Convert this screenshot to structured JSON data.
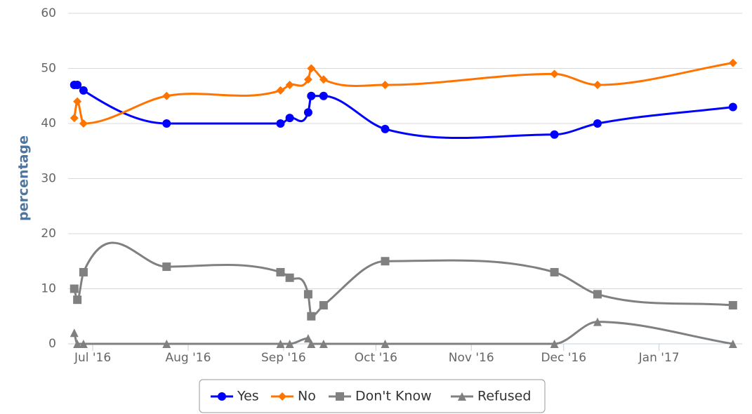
{
  "chart_data": {
    "type": "line",
    "y_label": "percentage",
    "x": [
      "2016-06-25",
      "2016-06-26",
      "2016-06-28",
      "2016-07-25",
      "2016-08-31",
      "2016-09-03",
      "2016-09-09",
      "2016-09-10",
      "2016-09-14",
      "2016-10-04",
      "2016-11-28",
      "2016-12-12",
      "2017-01-25"
    ],
    "series": [
      {
        "name": "Yes",
        "color": "#0000ff",
        "marker": "circle",
        "values": [
          47,
          47,
          46,
          40,
          40,
          41,
          42,
          45,
          45,
          39,
          38,
          40,
          43
        ]
      },
      {
        "name": "No",
        "color": "#ff7400",
        "marker": "diamond",
        "values": [
          41,
          44,
          40,
          45,
          46,
          47,
          48,
          50,
          48,
          47,
          49,
          47,
          51
        ]
      },
      {
        "name": "Don't Know",
        "color": "#808080",
        "marker": "square",
        "values": [
          10,
          8,
          13,
          14,
          13,
          12,
          9,
          5,
          7,
          15,
          13,
          9,
          7
        ]
      },
      {
        "name": "Refused",
        "color": "#808080",
        "marker": "triangle",
        "values": [
          2,
          0,
          0,
          0,
          0,
          0,
          1,
          0,
          0,
          0,
          0,
          4,
          0
        ]
      }
    ],
    "xlim": [
      "2016-06-23",
      "2017-01-28"
    ],
    "xticks": [
      {
        "value": "2016-07-01",
        "label": "Jul '16"
      },
      {
        "value": "2016-08-01",
        "label": "Aug '16"
      },
      {
        "value": "2016-09-01",
        "label": "Sep '16"
      },
      {
        "value": "2016-10-01",
        "label": "Oct '16"
      },
      {
        "value": "2016-11-01",
        "label": "Nov '16"
      },
      {
        "value": "2016-12-01",
        "label": "Dec '16"
      },
      {
        "value": "2017-01-01",
        "label": "Jan '17"
      }
    ],
    "ylim": [
      0,
      60
    ],
    "yticks": [
      0,
      10,
      20,
      30,
      40,
      50,
      60
    ],
    "grid": true,
    "legend": "bottom"
  }
}
